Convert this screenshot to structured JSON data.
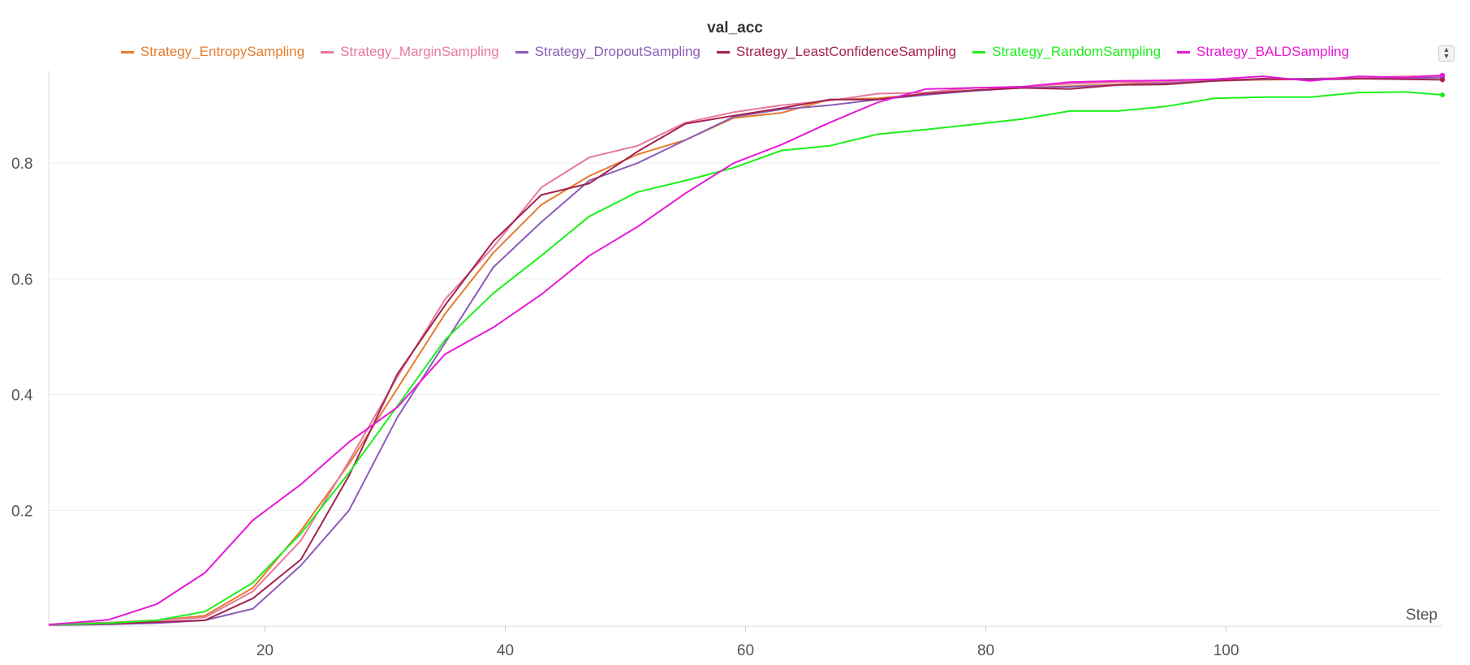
{
  "chart_data": {
    "type": "line",
    "title": "val_acc",
    "xlabel": "Step",
    "ylabel": "",
    "xlim": [
      2,
      118
    ],
    "ylim": [
      0,
      0.96
    ],
    "x_ticks": [
      20,
      40,
      60,
      80,
      100
    ],
    "y_ticks": [
      0.2,
      0.4,
      0.6,
      0.8
    ],
    "grid": true,
    "legend_position": "top-center",
    "x": [
      2,
      3,
      7,
      11,
      15,
      19,
      23,
      27,
      31,
      35,
      39,
      43,
      47,
      51,
      55,
      59,
      63,
      67,
      71,
      75,
      79,
      83,
      87,
      91,
      95,
      99,
      103,
      107,
      111,
      115,
      118
    ],
    "series": [
      {
        "name": "Strategy_EntropySampling",
        "color": "#e57c2f",
        "values": [
          0.003,
          0.004,
          0.006,
          0.01,
          0.018,
          0.066,
          0.165,
          0.28,
          0.41,
          0.54,
          0.645,
          0.728,
          0.778,
          0.815,
          0.84,
          0.878,
          0.887,
          0.91,
          0.912,
          0.92,
          0.926,
          0.93,
          0.933,
          0.936,
          0.94,
          0.942,
          0.944,
          0.945,
          0.946,
          0.947,
          0.948
        ]
      },
      {
        "name": "Strategy_MarginSampling",
        "color": "#e8799a",
        "values": [
          0.003,
          0.004,
          0.006,
          0.01,
          0.015,
          0.06,
          0.148,
          0.285,
          0.43,
          0.565,
          0.655,
          0.758,
          0.81,
          0.83,
          0.87,
          0.888,
          0.9,
          0.908,
          0.92,
          0.922,
          0.93,
          0.932,
          0.937,
          0.94,
          0.94,
          0.944,
          0.945,
          0.946,
          0.948,
          0.95,
          0.951
        ]
      },
      {
        "name": "Strategy_DropoutSampling",
        "color": "#8b5cb8",
        "values": [
          0.002,
          0.002,
          0.003,
          0.005,
          0.01,
          0.03,
          0.105,
          0.2,
          0.36,
          0.49,
          0.62,
          0.698,
          0.77,
          0.8,
          0.84,
          0.88,
          0.893,
          0.9,
          0.91,
          0.918,
          0.925,
          0.93,
          0.932,
          0.935,
          0.938,
          0.942,
          0.945,
          0.946,
          0.946,
          0.947,
          0.948
        ]
      },
      {
        "name": "Strategy_LeastConfidenceSampling",
        "color": "#a3224e",
        "values": [
          0.002,
          0.003,
          0.004,
          0.007,
          0.01,
          0.048,
          0.115,
          0.26,
          0.435,
          0.555,
          0.665,
          0.745,
          0.765,
          0.82,
          0.868,
          0.882,
          0.895,
          0.91,
          0.91,
          0.92,
          0.926,
          0.93,
          0.928,
          0.935,
          0.936,
          0.942,
          0.946,
          0.944,
          0.946,
          0.945,
          0.944
        ]
      },
      {
        "name": "Strategy_RandomSampling",
        "color": "#1cf01c",
        "values": [
          0.002,
          0.003,
          0.005,
          0.01,
          0.025,
          0.075,
          0.16,
          0.265,
          0.38,
          0.495,
          0.575,
          0.64,
          0.708,
          0.75,
          0.77,
          0.792,
          0.822,
          0.83,
          0.85,
          0.858,
          0.867,
          0.876,
          0.89,
          0.89,
          0.898,
          0.912,
          0.914,
          0.914,
          0.922,
          0.923,
          0.918
        ]
      },
      {
        "name": "Strategy_BALDSampling",
        "color": "#e619d6",
        "values": [
          0.002,
          0.004,
          0.011,
          0.038,
          0.092,
          0.183,
          0.245,
          0.318,
          0.378,
          0.47,
          0.516,
          0.573,
          0.64,
          0.69,
          0.748,
          0.8,
          0.832,
          0.87,
          0.905,
          0.928,
          0.93,
          0.932,
          0.94,
          0.942,
          0.943,
          0.945,
          0.95,
          0.942,
          0.95,
          0.948,
          0.952
        ]
      }
    ]
  }
}
